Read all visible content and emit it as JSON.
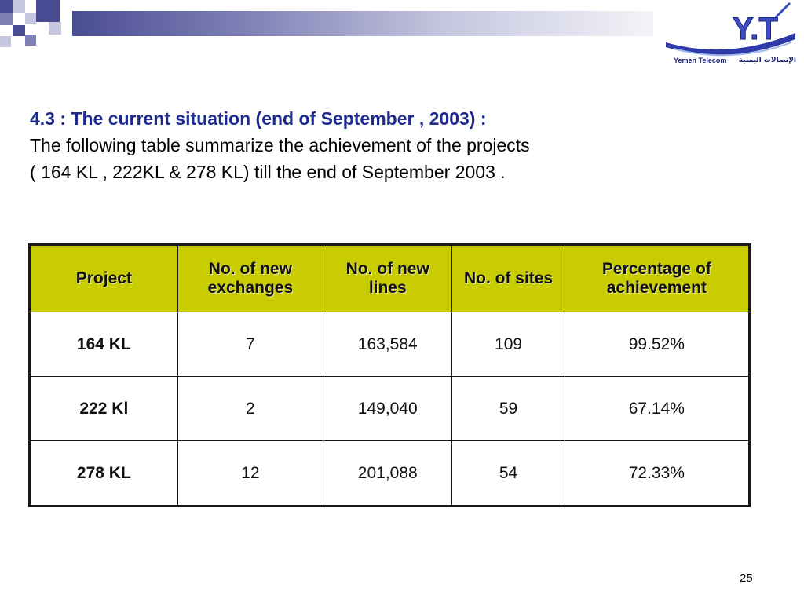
{
  "logo": {
    "mark": "Y.T",
    "company_en": "Yemen Telecom",
    "company_ar": "الإتصالات اليمنية"
  },
  "heading": "4.3 : The current situation (end of September , 2003) :",
  "body_line1": "The following table summarize the achievement  of the projects",
  "body_line2": "( 164 KL , 222KL & 278 KL) till the end of September 2003 .",
  "table": {
    "headers": [
      "Project",
      "No. of new exchanges",
      "No. of new lines",
      "No. of sites",
      "Percentage of achievement"
    ],
    "rows": [
      {
        "project": "164 KL",
        "exchanges": "7",
        "lines": "163,584",
        "sites": "109",
        "percentage": "99.52%"
      },
      {
        "project": "222 Kl",
        "exchanges": "2",
        "lines": "149,040",
        "sites": "59",
        "percentage": "67.14%"
      },
      {
        "project": "278 KL",
        "exchanges": "12",
        "lines": "201,088",
        "sites": "54",
        "percentage": "72.33%"
      }
    ]
  },
  "page_number": "25",
  "colors": {
    "header_fill": "#c9cc00",
    "heading_text": "#1d2b8f",
    "band_dark": "#4a4c93"
  }
}
